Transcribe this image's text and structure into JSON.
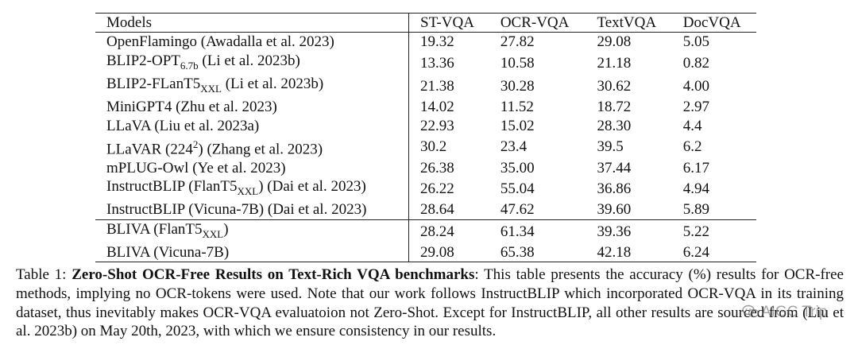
{
  "table": {
    "columns": [
      "Models",
      "ST-VQA",
      "OCR-VQA",
      "TextVQA",
      "DocVQA"
    ],
    "rows": [
      {
        "model": "OpenFlamingo (Awadalla et al. 2023)",
        "base": "OpenFlamingo (Awadalla et al. 2023)",
        "sub": "",
        "sup": "",
        "rest": "",
        "values": [
          "19.32",
          "27.82",
          "29.08",
          "5.05"
        ]
      },
      {
        "model": "BLIP2-OPT6.7b (Li et al. 2023b)",
        "base": "BLIP2-OPT",
        "sub": "6.7b",
        "sup": "",
        "rest": " (Li et al. 2023b)",
        "values": [
          "13.36",
          "10.58",
          "21.18",
          "0.82"
        ]
      },
      {
        "model": "BLIP2-FLanT5XXL (Li et al. 2023b)",
        "base": "BLIP2-FLanT5",
        "sub": "XXL",
        "sup": "",
        "rest": " (Li et al. 2023b)",
        "values": [
          "21.38",
          "30.28",
          "30.62",
          "4.00"
        ]
      },
      {
        "model": "MiniGPT4 (Zhu et al. 2023)",
        "base": "MiniGPT4 (Zhu et al. 2023)",
        "sub": "",
        "sup": "",
        "rest": "",
        "values": [
          "14.02",
          "11.52",
          "18.72",
          "2.97"
        ]
      },
      {
        "model": "LLaVA (Liu et al. 2023a)",
        "base": "LLaVA (Liu et al. 2023a)",
        "sub": "",
        "sup": "",
        "rest": "",
        "values": [
          "22.93",
          "15.02",
          "28.30",
          "4.4"
        ]
      },
      {
        "model": "LLaVAR (224²) (Zhang et al. 2023)",
        "base": "LLaVAR (224",
        "sub": "",
        "sup": "2",
        "rest": ") (Zhang et al. 2023)",
        "values": [
          "30.2",
          "23.4",
          "39.5",
          "6.2"
        ],
        "bold": [
          true,
          false,
          false,
          false
        ]
      },
      {
        "model": "mPLUG-Owl (Ye et al. 2023)",
        "base": "mPLUG-Owl (Ye et al. 2023)",
        "sub": "",
        "sup": "",
        "rest": "",
        "values": [
          "26.38",
          "35.00",
          "37.44",
          "6.17"
        ]
      },
      {
        "model": "InstructBLIP (FlanT5XXL) (Dai et al. 2023)",
        "base": "InstructBLIP (FlanT5",
        "sub": "XXL",
        "sup": "",
        "rest": ") (Dai et al. 2023)",
        "values": [
          "26.22",
          "55.04",
          "36.86",
          "4.94"
        ]
      },
      {
        "model": "InstructBLIP (Vicuna-7B) (Dai et al. 2023)",
        "base": "InstructBLIP (Vicuna-7B) (Dai et al. 2023)",
        "sub": "",
        "sup": "",
        "rest": "",
        "values": [
          "28.64",
          "47.62",
          "39.60",
          "5.89"
        ]
      },
      {
        "model": "BLIVA (FlanT5XXL)",
        "base": "BLIVA (FlanT5",
        "sub": "XXL",
        "sup": "",
        "rest": ")",
        "values": [
          "28.24",
          "61.34",
          "39.36",
          "5.22"
        ]
      },
      {
        "model": "BLIVA (Vicuna-7B)",
        "base": "BLIVA (Vicuna-7B)",
        "sub": "",
        "sup": "",
        "rest": "",
        "values": [
          "29.08",
          "65.38",
          "42.18",
          "6.24"
        ],
        "bold": [
          false,
          true,
          true,
          true
        ]
      }
    ]
  },
  "caption": {
    "label": "Table 1: ",
    "title": "Zero-Shot OCR-Free Results on Text-Rich VQA benchmarks",
    "body": ": This table presents the accuracy (%) results for OCR-free methods, implying no OCR-tokens were used. Note that our work follows InstructBLIP which incorporated OCR-VQA in its training dataset, thus inevitably makes OCR-VQA evaluatoion not Zero-Shot. Except for InstructBLIP, all other results are sourced from (Liu et al. 2023b) on May 20th, 2023, with which we ensure consistency in our results."
  },
  "watermark": {
    "text": "AIGC Trip",
    "icon": "wechat-icon"
  }
}
